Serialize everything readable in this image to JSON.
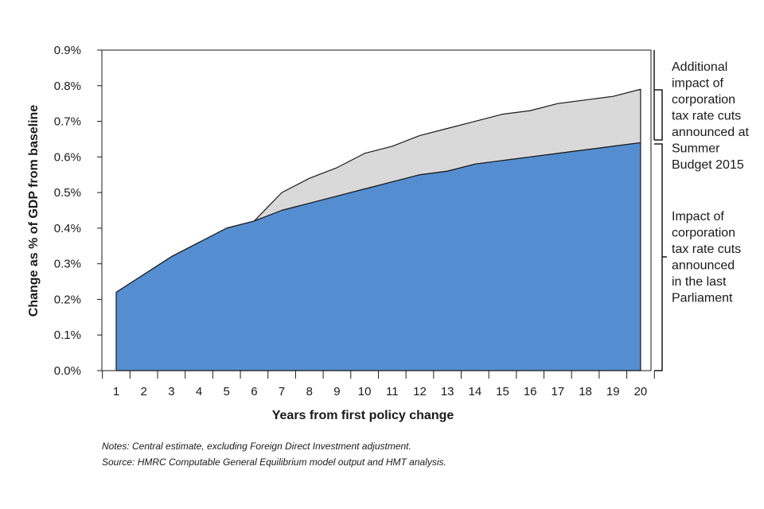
{
  "chart_data": {
    "type": "area",
    "xlabel": "Years from first policy change",
    "ylabel": "Change as % of GDP from baseline",
    "categories": [
      "1",
      "2",
      "3",
      "4",
      "5",
      "6",
      "7",
      "8",
      "9",
      "10",
      "11",
      "12",
      "13",
      "14",
      "15",
      "16",
      "17",
      "18",
      "19",
      "20"
    ],
    "y_ticks": [
      "0.0%",
      "0.1%",
      "0.2%",
      "0.3%",
      "0.4%",
      "0.5%",
      "0.6%",
      "0.7%",
      "0.8%",
      "0.9%"
    ],
    "ylim": [
      0,
      0.9
    ],
    "grid": false,
    "stacked": true,
    "series": [
      {
        "values": [
          0.22,
          0.27,
          0.32,
          0.36,
          0.4,
          0.42,
          0.45,
          0.47,
          0.49,
          0.51,
          0.53,
          0.55,
          0.56,
          0.58,
          0.59,
          0.6,
          0.61,
          0.62,
          0.63,
          0.64
        ],
        "color": "#558ed0"
      },
      {
        "values": [
          0.0,
          0.0,
          0.0,
          0.0,
          0.0,
          0.0,
          0.05,
          0.07,
          0.08,
          0.1,
          0.1,
          0.11,
          0.12,
          0.12,
          0.13,
          0.13,
          0.14,
          0.14,
          0.14,
          0.15
        ],
        "color": "#d9d9d9"
      }
    ],
    "annotations": {
      "additional": [
        "Additional",
        "impact of",
        "corporation",
        "tax rate cuts",
        "announced at",
        "Summer",
        "Budget 2015"
      ],
      "last_parliament": [
        "Impact of",
        "corporation",
        "tax rate cuts",
        "announced",
        "in the last",
        "Parliament"
      ]
    }
  },
  "notes": {
    "line1": "Notes: Central estimate, excluding Foreign Direct Investment adjustment.",
    "line2": "Source: HMRC Computable General Equilibrium model output and HMT analysis."
  }
}
